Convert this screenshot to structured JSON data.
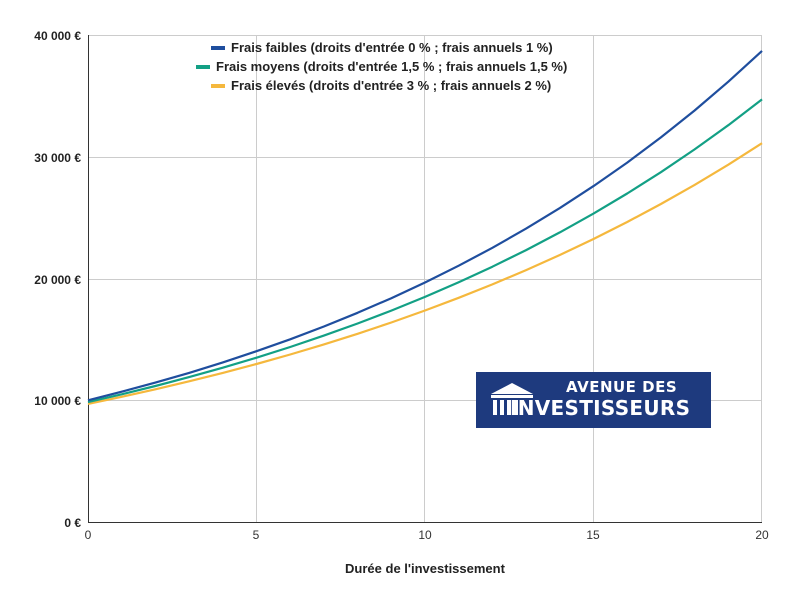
{
  "chart_data": {
    "type": "line",
    "title": "",
    "xlabel": "Durée de l'investissement",
    "ylabel": "",
    "x": [
      0,
      1,
      2,
      3,
      4,
      5,
      6,
      7,
      8,
      9,
      10,
      11,
      12,
      13,
      14,
      15,
      16,
      17,
      18,
      19,
      20
    ],
    "xlim": [
      0,
      20
    ],
    "ylim": [
      0,
      40000
    ],
    "x_ticks": [
      "0",
      "5",
      "10",
      "15",
      "20"
    ],
    "y_ticks": [
      "0 €",
      "10 000 €",
      "20 000 €",
      "30 000 €",
      "40 000 €"
    ],
    "grid": true,
    "legend_position": "top-center",
    "series": [
      {
        "name": "Frais faibles (droits d'entrée 0 % ; frais annuels 1 %)",
        "color": "#1f4e9e",
        "values": [
          10000,
          10700,
          11449,
          12250,
          13108,
          14026,
          15007,
          16058,
          17182,
          18385,
          19672,
          21049,
          22522,
          24098,
          25785,
          27590,
          29522,
          31588,
          33799,
          36165,
          38697
        ]
      },
      {
        "name": "Frais moyens (droits d'entrée 1,5 % ; frais annuels 1,5 %)",
        "color": "#13a085",
        "values": [
          9850,
          10490,
          11172,
          11898,
          12672,
          13495,
          14373,
          15307,
          16302,
          17362,
          18490,
          19692,
          20972,
          22335,
          23787,
          25333,
          26980,
          28733,
          30601,
          32590,
          34708
        ]
      },
      {
        "name": "Frais élevés (droits d'entrée 3 % ; frais annuels 2 %)",
        "color": "#f5b83d",
        "values": [
          9700,
          10282,
          10899,
          11553,
          12246,
          12981,
          13760,
          14585,
          15460,
          16388,
          17371,
          18413,
          19518,
          20689,
          21931,
          23246,
          24641,
          26120,
          27687,
          29348,
          31109
        ]
      }
    ]
  },
  "legend": {
    "items": [
      {
        "label": "Frais faibles (droits d'entrée 0 % ; frais annuels 1 %)",
        "color": "#1f4e9e"
      },
      {
        "label": "Frais moyens (droits d'entrée 1,5 % ; frais annuels 1,5 %)",
        "color": "#13a085"
      },
      {
        "label": "Frais élevés (droits d'entrée 3 % ; frais annuels 2 %)",
        "color": "#f5b83d"
      }
    ]
  },
  "axes": {
    "y_labels": [
      "40 000 €",
      "30 000 €",
      "20 000 €",
      "10 000 €",
      "0 €"
    ],
    "x_labels": [
      "0",
      "5",
      "10",
      "15",
      "20"
    ],
    "x_title": "Durée de l'investissement"
  },
  "logo": {
    "line1": "AVENUE DES",
    "line2": "INVESTISSEURS",
    "background": "#1e3a7e"
  }
}
